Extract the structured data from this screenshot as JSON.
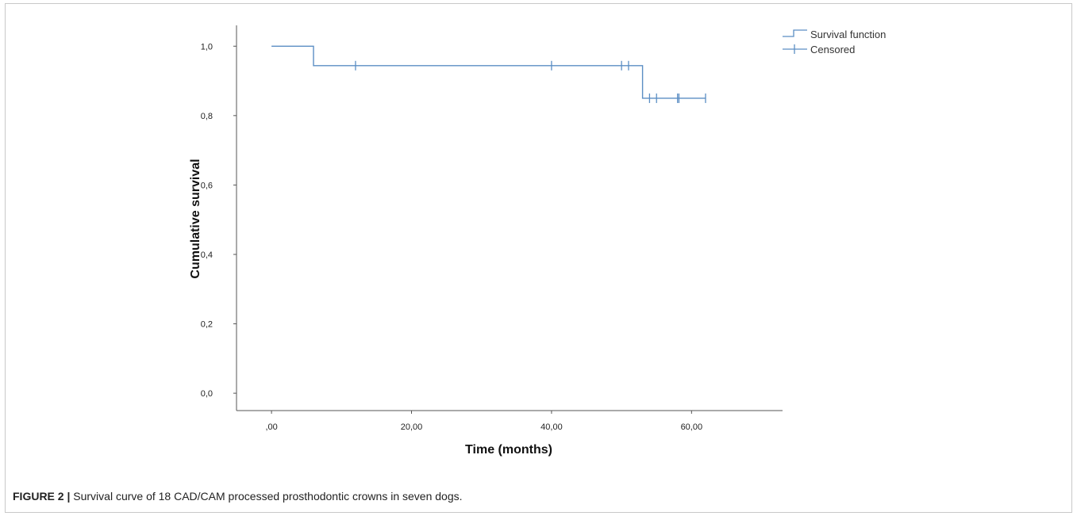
{
  "figure": {
    "caption_label": "FIGURE 2 |",
    "caption_text": " Survival curve of 18 CAD/CAM processed prosthodontic crowns in seven dogs."
  },
  "chart_data": {
    "type": "line",
    "subtype": "kaplan-meier-step",
    "title": "",
    "xlabel": "Time (months)",
    "ylabel": "Cumulative survival",
    "xlim": [
      -5,
      73
    ],
    "ylim": [
      -0.05,
      1.06
    ],
    "xticks": [
      0,
      20,
      40,
      60
    ],
    "xtick_labels": [
      ",00",
      "20,00",
      "40,00",
      "60,00"
    ],
    "yticks": [
      0.0,
      0.2,
      0.4,
      0.6,
      0.8,
      1.0
    ],
    "ytick_labels": [
      "0,0",
      "0,2",
      "0,4",
      "0,6",
      "0,8",
      "1,0"
    ],
    "grid": false,
    "legend_position": "top-right",
    "legend": [
      "Survival function",
      "Censored"
    ],
    "series": [
      {
        "name": "Survival function",
        "color": "#5b8ec4",
        "x": [
          0,
          6,
          6,
          53,
          53,
          62
        ],
        "y": [
          1.0,
          1.0,
          0.944,
          0.944,
          0.85,
          0.85
        ]
      },
      {
        "name": "Censored",
        "color": "#5b8ec4",
        "x": [
          12,
          40,
          50,
          51,
          54,
          55,
          58,
          58.2,
          62
        ],
        "y": [
          0.944,
          0.944,
          0.944,
          0.944,
          0.85,
          0.85,
          0.85,
          0.85,
          0.85
        ]
      }
    ]
  }
}
